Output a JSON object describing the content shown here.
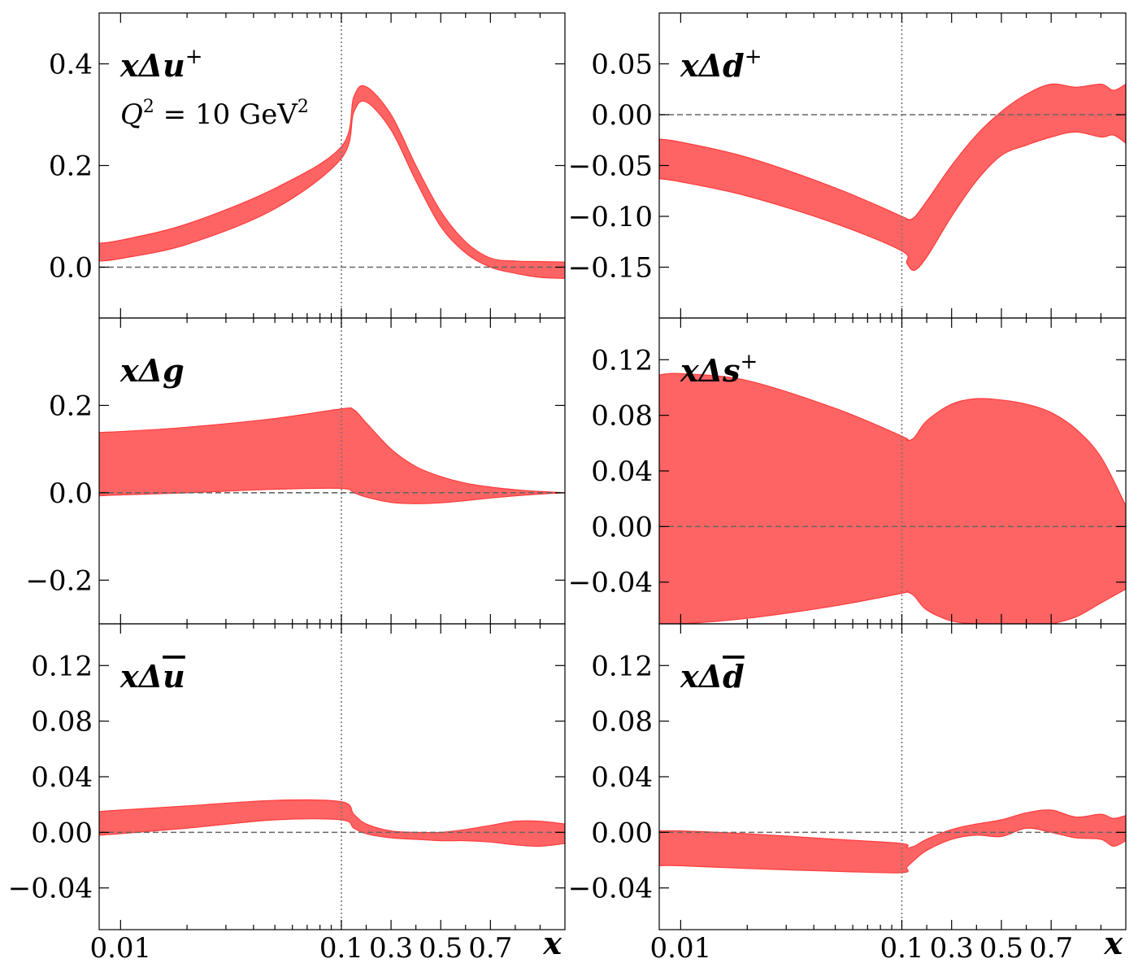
{
  "figure": {
    "xlabel": "x",
    "band_color": "#ff6464",
    "band_edge_color": "#ff3c3c",
    "zero_line_color": "#666666",
    "vline_color": "#777777"
  },
  "chart_data": [
    {
      "type": "area",
      "name": "upper-left",
      "label_main": "xΔu",
      "label_sup": "+",
      "note_main": "Q",
      "note_tail": " = 10 GeV",
      "note_sup": "2",
      "ylim": [
        -0.1,
        0.5
      ],
      "yticks": [
        0.0,
        0.2,
        0.4
      ],
      "ytick_labels": [
        "0.0",
        "0.2",
        "0.4"
      ],
      "x": [
        0.008,
        0.01,
        0.02,
        0.05,
        0.1,
        0.15,
        0.2,
        0.3,
        0.4,
        0.5,
        0.6,
        0.7,
        0.8,
        0.9,
        1.0
      ],
      "upper": [
        0.047,
        0.053,
        0.085,
        0.155,
        0.237,
        0.335,
        0.355,
        0.3,
        0.2,
        0.11,
        0.05,
        0.018,
        0.012,
        0.011,
        0.01
      ],
      "lower": [
        0.012,
        0.017,
        0.045,
        0.115,
        0.214,
        0.305,
        0.325,
        0.27,
        0.17,
        0.08,
        0.028,
        0.0,
        -0.012,
        -0.02,
        -0.022
      ]
    },
    {
      "type": "area",
      "name": "upper-right",
      "label_main": "xΔd",
      "label_sup": "+",
      "ylim": [
        -0.2,
        0.1
      ],
      "yticks": [
        -0.15,
        -0.1,
        -0.05,
        0.0,
        0.05
      ],
      "ytick_labels": [
        "−0.15",
        "−0.10",
        "−0.05",
        "0.00",
        "0.05"
      ],
      "x": [
        0.008,
        0.01,
        0.02,
        0.05,
        0.1,
        0.12,
        0.15,
        0.2,
        0.3,
        0.4,
        0.5,
        0.6,
        0.7,
        0.8,
        0.9,
        0.95,
        1.0
      ],
      "upper": [
        -0.024,
        -0.027,
        -0.042,
        -0.072,
        -0.1,
        -0.103,
        -0.101,
        -0.085,
        -0.05,
        -0.02,
        0.003,
        0.02,
        0.03,
        0.027,
        0.03,
        0.024,
        0.03
      ],
      "lower": [
        -0.063,
        -0.066,
        -0.08,
        -0.107,
        -0.134,
        -0.146,
        -0.153,
        -0.14,
        -0.1,
        -0.065,
        -0.04,
        -0.03,
        -0.022,
        -0.017,
        -0.022,
        -0.02,
        -0.028
      ]
    },
    {
      "type": "area",
      "name": "middle-left",
      "label_main": "xΔg",
      "label_sup": "",
      "ylim": [
        -0.3,
        0.4
      ],
      "yticks": [
        -0.2,
        0.0,
        0.2
      ],
      "ytick_labels": [
        "−0.2",
        "0.0",
        "0.2"
      ],
      "x": [
        0.008,
        0.01,
        0.02,
        0.05,
        0.1,
        0.15,
        0.2,
        0.3,
        0.4,
        0.5,
        0.6,
        0.7,
        0.8,
        0.9,
        1.0
      ],
      "upper": [
        0.138,
        0.14,
        0.15,
        0.17,
        0.192,
        0.19,
        0.16,
        0.1,
        0.06,
        0.037,
        0.022,
        0.013,
        0.007,
        0.003,
        0.0
      ],
      "lower": [
        -0.007,
        -0.005,
        0.0,
        0.008,
        0.01,
        0.0,
        -0.01,
        -0.022,
        -0.025,
        -0.023,
        -0.018,
        -0.012,
        -0.007,
        -0.003,
        0.0
      ]
    },
    {
      "type": "area",
      "name": "middle-right",
      "label_main": "xΔs",
      "label_sup": "+",
      "ylim": [
        -0.07,
        0.15
      ],
      "yticks": [
        -0.04,
        0.0,
        0.04,
        0.08,
        0.12
      ],
      "ytick_labels": [
        "−0.04",
        "0.00",
        "0.04",
        "0.08",
        "0.12"
      ],
      "x": [
        0.008,
        0.01,
        0.02,
        0.05,
        0.1,
        0.12,
        0.15,
        0.2,
        0.3,
        0.4,
        0.5,
        0.6,
        0.7,
        0.8,
        0.9,
        1.0
      ],
      "upper": [
        0.109,
        0.11,
        0.105,
        0.085,
        0.065,
        0.062,
        0.064,
        0.076,
        0.088,
        0.092,
        0.091,
        0.088,
        0.082,
        0.07,
        0.05,
        0.015
      ],
      "lower": [
        -0.07,
        -0.07,
        -0.066,
        -0.057,
        -0.048,
        -0.047,
        -0.05,
        -0.06,
        -0.068,
        -0.07,
        -0.072,
        -0.072,
        -0.07,
        -0.065,
        -0.055,
        -0.045
      ]
    },
    {
      "type": "area",
      "name": "lower-left",
      "label_main": "xΔu",
      "label_bar": true,
      "label_sup": "",
      "ylim": [
        -0.07,
        0.15
      ],
      "yticks": [
        -0.04,
        0.0,
        0.04,
        0.08,
        0.12
      ],
      "ytick_labels": [
        "−0.04",
        "0.00",
        "0.04",
        "0.08",
        "0.12"
      ],
      "x": [
        0.008,
        0.01,
        0.02,
        0.05,
        0.1,
        0.15,
        0.2,
        0.3,
        0.4,
        0.5,
        0.6,
        0.7,
        0.8,
        0.9,
        1.0
      ],
      "upper": [
        0.015,
        0.016,
        0.019,
        0.023,
        0.022,
        0.013,
        0.006,
        0.001,
        0.0,
        0.0,
        0.002,
        0.005,
        0.008,
        0.008,
        0.006
      ],
      "lower": [
        -0.002,
        -0.001,
        0.003,
        0.009,
        0.009,
        0.003,
        -0.001,
        -0.004,
        -0.005,
        -0.006,
        -0.006,
        -0.007,
        -0.009,
        -0.01,
        -0.008
      ]
    },
    {
      "type": "area",
      "name": "lower-right",
      "label_main": "xΔd",
      "label_bar": true,
      "label_sup": "",
      "ylim": [
        -0.07,
        0.15
      ],
      "yticks": [
        -0.04,
        0.0,
        0.04,
        0.08,
        0.12
      ],
      "ytick_labels": [
        "−0.04",
        "0.00",
        "0.04",
        "0.08",
        "0.12"
      ],
      "x": [
        0.008,
        0.01,
        0.02,
        0.05,
        0.1,
        0.12,
        0.15,
        0.2,
        0.3,
        0.4,
        0.5,
        0.6,
        0.7,
        0.8,
        0.9,
        0.95,
        1.0
      ],
      "upper": [
        0.001,
        0.001,
        -0.001,
        -0.005,
        -0.008,
        -0.011,
        -0.01,
        -0.005,
        0.002,
        0.006,
        0.009,
        0.014,
        0.016,
        0.011,
        0.013,
        0.01,
        0.012
      ],
      "lower": [
        -0.024,
        -0.024,
        -0.026,
        -0.028,
        -0.029,
        -0.025,
        -0.02,
        -0.013,
        -0.005,
        -0.002,
        -0.003,
        0.003,
        0.0,
        -0.004,
        -0.005,
        -0.01,
        -0.006
      ]
    }
  ],
  "x_axis": {
    "ticks": [
      0.01,
      0.1,
      0.3,
      0.5,
      0.7
    ],
    "tick_labels": [
      "0.01",
      "0.1",
      "0.3",
      "0.5",
      "0.7"
    ],
    "log_minor_ticks": [
      0.02,
      0.03,
      0.04,
      0.05,
      0.06,
      0.07,
      0.08,
      0.09
    ],
    "linear_minor_ticks": [
      0.2,
      0.4,
      0.6,
      0.8,
      0.9
    ],
    "split": 0.1,
    "xmin": 0.008,
    "xmax": 1.0
  }
}
